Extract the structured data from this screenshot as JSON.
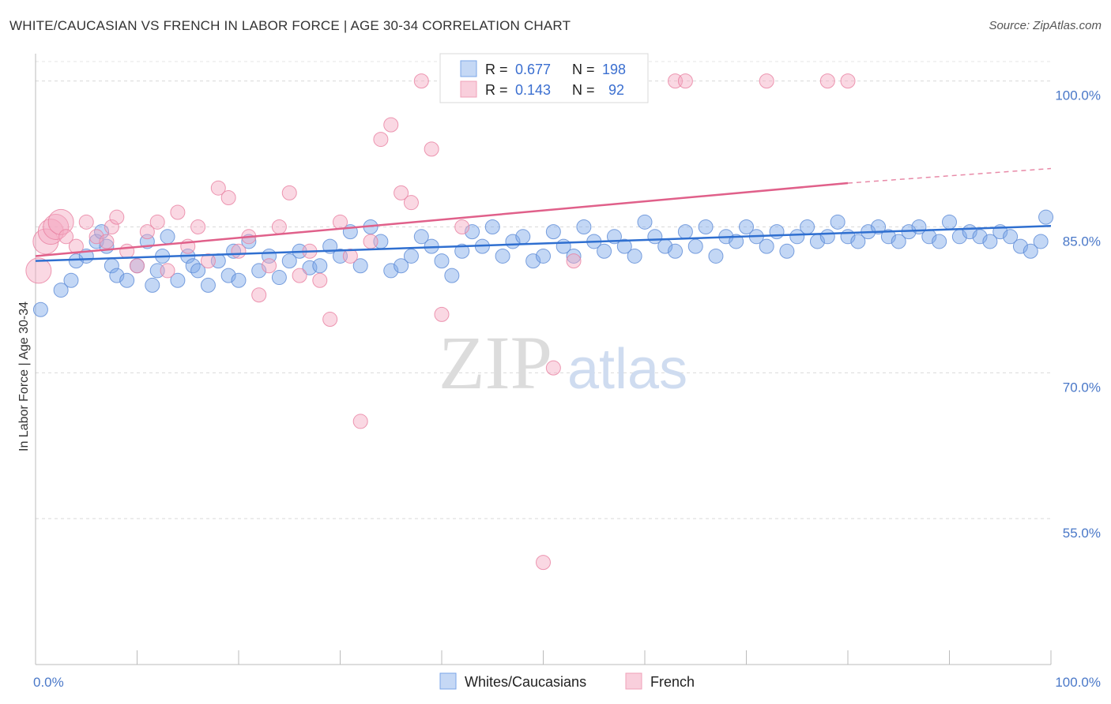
{
  "title": "WHITE/CAUCASIAN VS FRENCH IN LABOR FORCE | AGE 30-34 CORRELATION CHART",
  "source": "Source: ZipAtlas.com",
  "watermark": {
    "zip": "ZIP",
    "atlas": "atlas"
  },
  "legend_top": [
    {
      "r_label": "R =",
      "r_value": "0.677",
      "n_label": "N =",
      "n_value": "198",
      "color": "#7aa6e8"
    },
    {
      "r_label": "R =",
      "r_value": "0.143",
      "n_label": "N =",
      "n_value": "92",
      "color": "#f0a0b8"
    }
  ],
  "chart_data": {
    "type": "scatter",
    "title": "WHITE/CAUCASIAN VS FRENCH IN LABOR FORCE | AGE 30-34 CORRELATION CHART",
    "xlabel": "",
    "ylabel": "In Labor Force | Age 30-34",
    "xlim": [
      0,
      100
    ],
    "ylim": [
      40,
      102
    ],
    "x_tick_labels": [
      "0.0%",
      "100.0%"
    ],
    "y_ticks": [
      55,
      70,
      85,
      100
    ],
    "y_tick_labels": [
      "55.0%",
      "70.0%",
      "85.0%",
      "100.0%"
    ],
    "grid": true,
    "legend": "top-center",
    "series": [
      {
        "name": "Whites/Caucasians",
        "color": "#7aa6e8",
        "stroke": "#5b8ad6",
        "trend": {
          "x": [
            0,
            100
          ],
          "y": [
            81.5,
            85.1
          ]
        },
        "x": [
          0.5,
          2.5,
          3.5,
          4.0,
          5.0,
          6.0,
          6.5,
          7.0,
          7.5,
          8.0,
          9.0,
          10.0,
          11.0,
          11.5,
          12.0,
          12.5,
          13.0,
          14.0,
          15.0,
          15.5,
          16.0,
          17.0,
          18.0,
          19.0,
          19.5,
          20.0,
          21.0,
          22.0,
          23.0,
          24.0,
          25.0,
          26.0,
          27.0,
          28.0,
          29.0,
          30.0,
          31.0,
          32.0,
          33.0,
          34.0,
          35.0,
          36.0,
          37.0,
          38.0,
          39.0,
          40.0,
          41.0,
          42.0,
          43.0,
          44.0,
          45.0,
          46.0,
          47.0,
          48.0,
          49.0,
          50.0,
          51.0,
          52.0,
          53.0,
          54.0,
          55.0,
          56.0,
          57.0,
          58.0,
          59.0,
          60.0,
          61.0,
          62.0,
          63.0,
          64.0,
          65.0,
          66.0,
          67.0,
          68.0,
          69.0,
          70.0,
          71.0,
          72.0,
          73.0,
          74.0,
          75.0,
          76.0,
          77.0,
          78.0,
          79.0,
          80.0,
          81.0,
          82.0,
          83.0,
          84.0,
          85.0,
          86.0,
          87.0,
          88.0,
          89.0,
          90.0,
          91.0,
          92.0,
          93.0,
          94.0,
          95.0,
          96.0,
          97.0,
          98.0,
          99.0,
          99.5
        ],
        "y": [
          76.5,
          78.5,
          79.5,
          81.5,
          82.0,
          83.5,
          84.5,
          83.0,
          81.0,
          80.0,
          79.5,
          81.0,
          83.5,
          79.0,
          80.5,
          82.0,
          84.0,
          79.5,
          82.0,
          81.0,
          80.5,
          79.0,
          81.5,
          80.0,
          82.5,
          79.5,
          83.5,
          80.5,
          82.0,
          79.8,
          81.5,
          82.5,
          80.8,
          81.0,
          83.0,
          82.0,
          84.5,
          81.0,
          85.0,
          83.5,
          80.5,
          81.0,
          82.0,
          84.0,
          83.0,
          81.5,
          80.0,
          82.5,
          84.5,
          83.0,
          85.0,
          82.0,
          83.5,
          84.0,
          81.5,
          82.0,
          84.5,
          83.0,
          82.0,
          85.0,
          83.5,
          82.5,
          84.0,
          83.0,
          82.0,
          85.5,
          84.0,
          83.0,
          82.5,
          84.5,
          83.0,
          85.0,
          82.0,
          84.0,
          83.5,
          85.0,
          84.0,
          83.0,
          84.5,
          82.5,
          84.0,
          85.0,
          83.5,
          84.0,
          85.5,
          84.0,
          83.5,
          84.5,
          85.0,
          84.0,
          83.5,
          84.5,
          85.0,
          84.0,
          83.5,
          85.5,
          84.0,
          84.5,
          84.0,
          83.5,
          84.5,
          84.0,
          83.0,
          82.5,
          83.5,
          86.0
        ]
      },
      {
        "name": "French",
        "color": "#f4a9c0",
        "stroke": "#e87fa0",
        "trend": {
          "x": [
            0,
            80
          ],
          "y": [
            82.0,
            89.5
          ],
          "dash_to": {
            "x": 100,
            "y": 91.0
          }
        },
        "x": [
          0.3,
          1.0,
          1.5,
          2.0,
          2.5,
          3.0,
          4.0,
          5.0,
          6.0,
          7.0,
          7.5,
          8.0,
          9.0,
          10.0,
          11.0,
          12.0,
          13.0,
          14.0,
          15.0,
          16.0,
          17.0,
          18.0,
          19.0,
          20.0,
          21.0,
          22.0,
          23.0,
          24.0,
          25.0,
          26.0,
          27.0,
          28.0,
          29.0,
          30.0,
          31.0,
          32.0,
          33.0,
          34.0,
          35.0,
          36.0,
          37.0,
          38.0,
          39.0,
          40.0,
          41.0,
          42.0,
          45.0,
          48.0,
          50.0,
          51.0,
          53.0,
          55.0,
          59.0,
          63.0,
          64.0,
          72.0,
          78.0,
          80.0
        ],
        "y": [
          80.5,
          83.5,
          84.5,
          85.0,
          85.5,
          84.0,
          83.0,
          85.5,
          84.0,
          83.5,
          85.0,
          86.0,
          82.5,
          81.0,
          84.5,
          85.5,
          80.5,
          86.5,
          83.0,
          85.0,
          81.5,
          89.0,
          88.0,
          82.5,
          84.0,
          78.0,
          81.0,
          85.0,
          88.5,
          80.0,
          82.5,
          79.5,
          75.5,
          85.5,
          82.0,
          65.0,
          83.5,
          94.0,
          95.5,
          88.5,
          87.5,
          100.0,
          93.0,
          76.0,
          100.0,
          85.0,
          100.0,
          100.0,
          50.5,
          70.5,
          81.5,
          100.0,
          100.0,
          100.0,
          100.0,
          100.0,
          100.0,
          100.0
        ]
      }
    ]
  },
  "bottom_legend": [
    {
      "label": "Whites/Caucasians",
      "color": "#7aa6e8"
    },
    {
      "label": "French",
      "color": "#f4a9c0"
    }
  ]
}
